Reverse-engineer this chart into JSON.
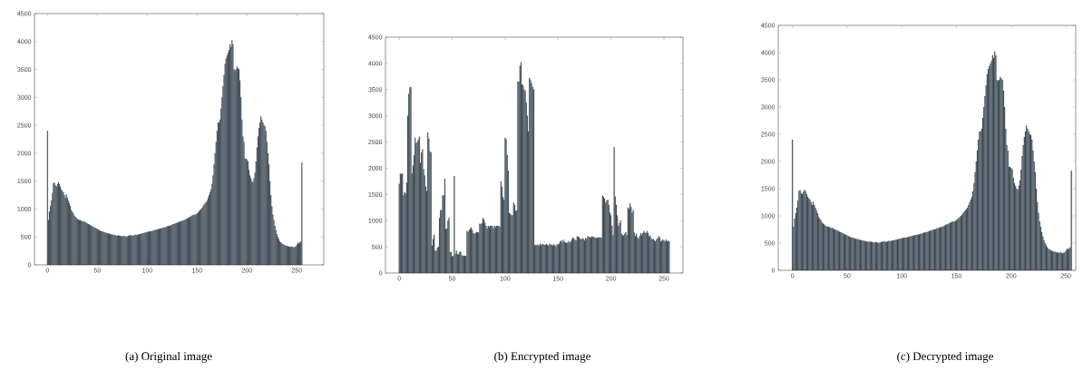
{
  "chart_data": [
    {
      "type": "bar",
      "color": "#34434f",
      "annotations": [
        "(a) Original image"
      ],
      "xlim": [
        -13,
        277
      ],
      "ylim": [
        0,
        4500
      ],
      "xticks": [
        0,
        50,
        100,
        150,
        200,
        250
      ],
      "yticks": [
        0,
        500,
        1000,
        1500,
        2000,
        2500,
        3000,
        3500,
        4000,
        4500
      ],
      "x": [
        0,
        1,
        2,
        3,
        4,
        5,
        6,
        7,
        8,
        9,
        10,
        11,
        12,
        13,
        14,
        15,
        16,
        17,
        18,
        19,
        20,
        21,
        22,
        23,
        24,
        25,
        26,
        27,
        28,
        29,
        30,
        31,
        32,
        33,
        34,
        35,
        36,
        37,
        38,
        39,
        40,
        41,
        42,
        43,
        44,
        45,
        46,
        47,
        48,
        49,
        50,
        51,
        52,
        53,
        54,
        55,
        56,
        57,
        58,
        59,
        60,
        61,
        62,
        63,
        64,
        65,
        66,
        67,
        68,
        69,
        70,
        71,
        72,
        73,
        74,
        75,
        76,
        77,
        78,
        79,
        80,
        81,
        82,
        83,
        84,
        85,
        86,
        87,
        88,
        89,
        90,
        91,
        92,
        93,
        94,
        95,
        96,
        97,
        98,
        99,
        100,
        101,
        102,
        103,
        104,
        105,
        106,
        107,
        108,
        109,
        110,
        111,
        112,
        113,
        114,
        115,
        116,
        117,
        118,
        119,
        120,
        121,
        122,
        123,
        124,
        125,
        126,
        127,
        128,
        129,
        130,
        131,
        132,
        133,
        134,
        135,
        136,
        137,
        138,
        139,
        140,
        141,
        142,
        143,
        144,
        145,
        146,
        147,
        148,
        149,
        150,
        151,
        152,
        153,
        154,
        155,
        156,
        157,
        158,
        159,
        160,
        161,
        162,
        163,
        164,
        165,
        166,
        167,
        168,
        169,
        170,
        171,
        172,
        173,
        174,
        175,
        176,
        177,
        178,
        179,
        180,
        181,
        182,
        183,
        184,
        185,
        186,
        187,
        188,
        189,
        190,
        191,
        192,
        193,
        194,
        195,
        196,
        197,
        198,
        199,
        200,
        201,
        202,
        203,
        204,
        205,
        206,
        207,
        208,
        209,
        210,
        211,
        212,
        213,
        214,
        215,
        216,
        217,
        218,
        219,
        220,
        221,
        222,
        223,
        224,
        225,
        226,
        227,
        228,
        229,
        230,
        231,
        232,
        233,
        234,
        235,
        236,
        237,
        238,
        239,
        240,
        241,
        242,
        243,
        244,
        245,
        246,
        247,
        248,
        249,
        250,
        251,
        252,
        253,
        254,
        255
      ],
      "values": [
        2400,
        800,
        950,
        1050,
        1150,
        1280,
        1460,
        1470,
        1420,
        1400,
        1440,
        1480,
        1450,
        1400,
        1350,
        1320,
        1300,
        1250,
        1200,
        1260,
        1200,
        1150,
        1100,
        1050,
        980,
        950,
        920,
        880,
        860,
        840,
        820,
        810,
        800,
        800,
        790,
        780,
        780,
        770,
        760,
        750,
        740,
        730,
        720,
        710,
        700,
        690,
        680,
        670,
        660,
        650,
        640,
        630,
        620,
        610,
        600,
        600,
        590,
        580,
        580,
        570,
        570,
        560,
        560,
        550,
        550,
        540,
        540,
        530,
        530,
        520,
        520,
        530,
        520,
        520,
        510,
        510,
        520,
        510,
        510,
        500,
        510,
        520,
        520,
        530,
        530,
        520,
        520,
        530,
        540,
        530,
        540,
        540,
        550,
        550,
        560,
        560,
        570,
        570,
        580,
        580,
        590,
        590,
        600,
        600,
        600,
        610,
        610,
        620,
        620,
        630,
        630,
        640,
        640,
        650,
        650,
        660,
        660,
        670,
        670,
        680,
        690,
        690,
        700,
        700,
        710,
        720,
        730,
        730,
        740,
        750,
        750,
        760,
        770,
        770,
        780,
        790,
        790,
        800,
        810,
        820,
        830,
        840,
        850,
        860,
        870,
        880,
        890,
        900,
        890,
        910,
        920,
        940,
        960,
        980,
        1000,
        1020,
        1050,
        1080,
        1100,
        1120,
        1150,
        1200,
        1250,
        1300,
        1350,
        1450,
        1600,
        1800,
        2000,
        2200,
        2400,
        2550,
        2550,
        2600,
        2800,
        3000,
        3200,
        3400,
        3600,
        3700,
        3750,
        3800,
        3850,
        3950,
        3900,
        4020,
        3950,
        3500,
        3480,
        3500,
        3550,
        3520,
        3500,
        3300,
        3000,
        2600,
        2300,
        2200,
        1900,
        1900,
        1880,
        1850,
        1700,
        1600,
        1550,
        1500,
        1480,
        1550,
        1650,
        1850,
        2100,
        2300,
        2450,
        2550,
        2660,
        2600,
        2550,
        2500,
        2480,
        2400,
        2200,
        2000,
        1800,
        1500,
        1250,
        1050,
        900,
        800,
        700,
        620,
        550,
        500,
        460,
        420,
        400,
        380,
        370,
        360,
        350,
        340,
        340,
        330,
        330,
        320,
        320,
        330,
        320,
        310,
        320,
        330,
        360,
        400,
        380,
        400,
        420,
        1830
      ]
    },
    {
      "type": "bar",
      "color": "#34434f",
      "annotations": [
        "(b) Encrypted image"
      ],
      "xlim": [
        -13,
        268
      ],
      "ylim": [
        0,
        4500
      ],
      "xticks": [
        0,
        50,
        100,
        150,
        200,
        250
      ],
      "yticks": [
        0,
        500,
        1000,
        1500,
        2000,
        2500,
        3000,
        3500,
        4000,
        4500
      ],
      "x": [
        0,
        1,
        2,
        3,
        4,
        5,
        6,
        7,
        8,
        9,
        10,
        11,
        12,
        13,
        14,
        15,
        16,
        17,
        18,
        19,
        20,
        21,
        22,
        23,
        24,
        25,
        26,
        27,
        28,
        29,
        30,
        31,
        32,
        33,
        34,
        35,
        36,
        37,
        38,
        39,
        40,
        41,
        42,
        43,
        44,
        45,
        46,
        47,
        48,
        49,
        50,
        51,
        52,
        53,
        54,
        55,
        56,
        57,
        58,
        59,
        60,
        61,
        62,
        63,
        64,
        65,
        66,
        67,
        68,
        69,
        70,
        71,
        72,
        73,
        74,
        75,
        76,
        77,
        78,
        79,
        80,
        81,
        82,
        83,
        84,
        85,
        86,
        87,
        88,
        89,
        90,
        91,
        92,
        93,
        94,
        95,
        96,
        97,
        98,
        99,
        100,
        101,
        102,
        103,
        104,
        105,
        106,
        107,
        108,
        109,
        110,
        111,
        112,
        113,
        114,
        115,
        116,
        117,
        118,
        119,
        120,
        121,
        122,
        123,
        124,
        125,
        126,
        127,
        128,
        129,
        130,
        131,
        132,
        133,
        134,
        135,
        136,
        137,
        138,
        139,
        140,
        141,
        142,
        143,
        144,
        145,
        146,
        147,
        148,
        149,
        150,
        151,
        152,
        153,
        154,
        155,
        156,
        157,
        158,
        159,
        160,
        161,
        162,
        163,
        164,
        165,
        166,
        167,
        168,
        169,
        170,
        171,
        172,
        173,
        174,
        175,
        176,
        177,
        178,
        179,
        180,
        181,
        182,
        183,
        184,
        185,
        186,
        187,
        188,
        189,
        190,
        191,
        192,
        193,
        194,
        195,
        196,
        197,
        198,
        199,
        200,
        201,
        202,
        203,
        204,
        205,
        206,
        207,
        208,
        209,
        210,
        211,
        212,
        213,
        214,
        215,
        216,
        217,
        218,
        219,
        220,
        221,
        222,
        223,
        224,
        225,
        226,
        227,
        228,
        229,
        230,
        231,
        232,
        233,
        234,
        235,
        236,
        237,
        238,
        239,
        240,
        241,
        242,
        243,
        244,
        245,
        246,
        247,
        248,
        249,
        250,
        251,
        252,
        253,
        254,
        255
      ],
      "values": [
        1700,
        1900,
        1880,
        1900,
        1480,
        1540,
        1520,
        1720,
        3000,
        3420,
        3540,
        3550,
        1900,
        2050,
        2250,
        2580,
        2480,
        2500,
        2550,
        2600,
        2100,
        2300,
        2360,
        1980,
        1860,
        1650,
        1560,
        2680,
        2560,
        2320,
        2300,
        520,
        650,
        730,
        430,
        420,
        480,
        500,
        1050,
        1200,
        1200,
        1480,
        1480,
        1800,
        840,
        850,
        1000,
        1050,
        400,
        400,
        320,
        320,
        1850,
        360,
        430,
        360,
        350,
        400,
        410,
        340,
        330,
        330,
        330,
        320,
        800,
        780,
        820,
        840,
        870,
        820,
        760,
        740,
        760,
        780,
        780,
        770,
        940,
        930,
        950,
        1050,
        1020,
        960,
        900,
        850,
        900,
        880,
        900,
        900,
        900,
        850,
        900,
        880,
        900,
        900,
        900,
        880,
        1750,
        1650,
        1450,
        1400,
        2580,
        2550,
        2250,
        1950,
        1140,
        1130,
        1100,
        1100,
        1340,
        1300,
        1180,
        1200,
        3650,
        3650,
        3950,
        4020,
        3600,
        3580,
        3500,
        3480,
        3250,
        3000,
        2700,
        3720,
        3680,
        3620,
        3550,
        3500,
        530,
        530,
        530,
        540,
        520,
        560,
        530,
        550,
        550,
        530,
        540,
        550,
        540,
        520,
        560,
        540,
        540,
        520,
        550,
        530,
        500,
        550,
        540,
        560,
        600,
        620,
        580,
        630,
        600,
        580,
        570,
        580,
        600,
        580,
        600,
        640,
        680,
        660,
        630,
        620,
        700,
        690,
        680,
        650,
        640,
        660,
        650,
        620,
        670,
        650,
        700,
        690,
        680,
        680,
        700,
        690,
        680,
        680,
        660,
        670,
        680,
        680,
        680,
        670,
        1480,
        1450,
        1420,
        1340,
        1380,
        1400,
        1300,
        1150,
        1100,
        900,
        720,
        2400,
        1460,
        1300,
        1100,
        900,
        950,
        1000,
        750,
        720,
        720,
        750,
        780,
        720,
        1250,
        1220,
        1330,
        1260,
        1150,
        1200,
        770,
        700,
        750,
        680,
        650,
        700,
        760,
        720,
        760,
        800,
        770,
        760,
        800,
        760,
        700,
        720,
        660,
        640,
        650,
        620,
        600,
        640,
        660,
        700,
        680,
        600,
        620,
        640,
        620,
        600,
        640,
        600,
        620,
        600
      ]
    },
    {
      "type": "bar",
      "color": "#34434f",
      "annotations": [
        "(c) Decrypted image"
      ],
      "xlim": [
        -13,
        259
      ],
      "ylim": [
        0,
        4500
      ],
      "xticks": [
        0,
        50,
        100,
        150,
        200,
        250
      ],
      "yticks": [
        0,
        500,
        1000,
        1500,
        2000,
        2500,
        3000,
        3500,
        4000,
        4500
      ],
      "x": [
        0,
        1,
        2,
        3,
        4,
        5,
        6,
        7,
        8,
        9,
        10,
        11,
        12,
        13,
        14,
        15,
        16,
        17,
        18,
        19,
        20,
        21,
        22,
        23,
        24,
        25,
        26,
        27,
        28,
        29,
        30,
        31,
        32,
        33,
        34,
        35,
        36,
        37,
        38,
        39,
        40,
        41,
        42,
        43,
        44,
        45,
        46,
        47,
        48,
        49,
        50,
        51,
        52,
        53,
        54,
        55,
        56,
        57,
        58,
        59,
        60,
        61,
        62,
        63,
        64,
        65,
        66,
        67,
        68,
        69,
        70,
        71,
        72,
        73,
        74,
        75,
        76,
        77,
        78,
        79,
        80,
        81,
        82,
        83,
        84,
        85,
        86,
        87,
        88,
        89,
        90,
        91,
        92,
        93,
        94,
        95,
        96,
        97,
        98,
        99,
        100,
        101,
        102,
        103,
        104,
        105,
        106,
        107,
        108,
        109,
        110,
        111,
        112,
        113,
        114,
        115,
        116,
        117,
        118,
        119,
        120,
        121,
        122,
        123,
        124,
        125,
        126,
        127,
        128,
        129,
        130,
        131,
        132,
        133,
        134,
        135,
        136,
        137,
        138,
        139,
        140,
        141,
        142,
        143,
        144,
        145,
        146,
        147,
        148,
        149,
        150,
        151,
        152,
        153,
        154,
        155,
        156,
        157,
        158,
        159,
        160,
        161,
        162,
        163,
        164,
        165,
        166,
        167,
        168,
        169,
        170,
        171,
        172,
        173,
        174,
        175,
        176,
        177,
        178,
        179,
        180,
        181,
        182,
        183,
        184,
        185,
        186,
        187,
        188,
        189,
        190,
        191,
        192,
        193,
        194,
        195,
        196,
        197,
        198,
        199,
        200,
        201,
        202,
        203,
        204,
        205,
        206,
        207,
        208,
        209,
        210,
        211,
        212,
        213,
        214,
        215,
        216,
        217,
        218,
        219,
        220,
        221,
        222,
        223,
        224,
        225,
        226,
        227,
        228,
        229,
        230,
        231,
        232,
        233,
        234,
        235,
        236,
        237,
        238,
        239,
        240,
        241,
        242,
        243,
        244,
        245,
        246,
        247,
        248,
        249,
        250,
        251,
        252,
        253,
        254,
        255
      ],
      "values": [
        2400,
        800,
        950,
        1050,
        1150,
        1280,
        1460,
        1470,
        1420,
        1400,
        1440,
        1480,
        1450,
        1400,
        1350,
        1320,
        1300,
        1250,
        1200,
        1260,
        1200,
        1150,
        1100,
        1050,
        980,
        950,
        920,
        880,
        860,
        840,
        820,
        810,
        800,
        800,
        790,
        780,
        780,
        770,
        760,
        750,
        740,
        730,
        720,
        710,
        700,
        690,
        680,
        670,
        660,
        650,
        640,
        630,
        620,
        610,
        600,
        600,
        590,
        580,
        580,
        570,
        570,
        560,
        560,
        550,
        550,
        540,
        540,
        530,
        530,
        520,
        520,
        530,
        520,
        520,
        510,
        510,
        520,
        510,
        510,
        500,
        510,
        520,
        520,
        530,
        530,
        520,
        520,
        530,
        540,
        530,
        540,
        540,
        550,
        550,
        560,
        560,
        570,
        570,
        580,
        580,
        590,
        590,
        600,
        600,
        600,
        610,
        610,
        620,
        620,
        630,
        630,
        640,
        640,
        650,
        650,
        660,
        660,
        670,
        670,
        680,
        690,
        690,
        700,
        700,
        710,
        720,
        730,
        730,
        740,
        750,
        750,
        760,
        770,
        770,
        780,
        790,
        790,
        800,
        810,
        820,
        830,
        840,
        850,
        860,
        870,
        880,
        890,
        900,
        890,
        910,
        920,
        940,
        960,
        980,
        1000,
        1020,
        1050,
        1080,
        1100,
        1120,
        1150,
        1200,
        1250,
        1300,
        1350,
        1450,
        1600,
        1800,
        2000,
        2200,
        2400,
        2550,
        2550,
        2600,
        2800,
        3000,
        3200,
        3400,
        3600,
        3700,
        3750,
        3800,
        3850,
        3950,
        3900,
        4020,
        3950,
        3500,
        3480,
        3500,
        3550,
        3520,
        3500,
        3300,
        3000,
        2600,
        2300,
        2200,
        1900,
        1900,
        1880,
        1850,
        1700,
        1600,
        1550,
        1500,
        1480,
        1550,
        1650,
        1850,
        2100,
        2300,
        2450,
        2550,
        2660,
        2600,
        2550,
        2500,
        2480,
        2400,
        2200,
        2000,
        1800,
        1500,
        1250,
        1050,
        900,
        800,
        700,
        620,
        550,
        500,
        460,
        420,
        400,
        380,
        370,
        360,
        350,
        340,
        340,
        330,
        330,
        320,
        320,
        330,
        320,
        310,
        320,
        330,
        360,
        400,
        380,
        400,
        420,
        1830
      ]
    }
  ]
}
